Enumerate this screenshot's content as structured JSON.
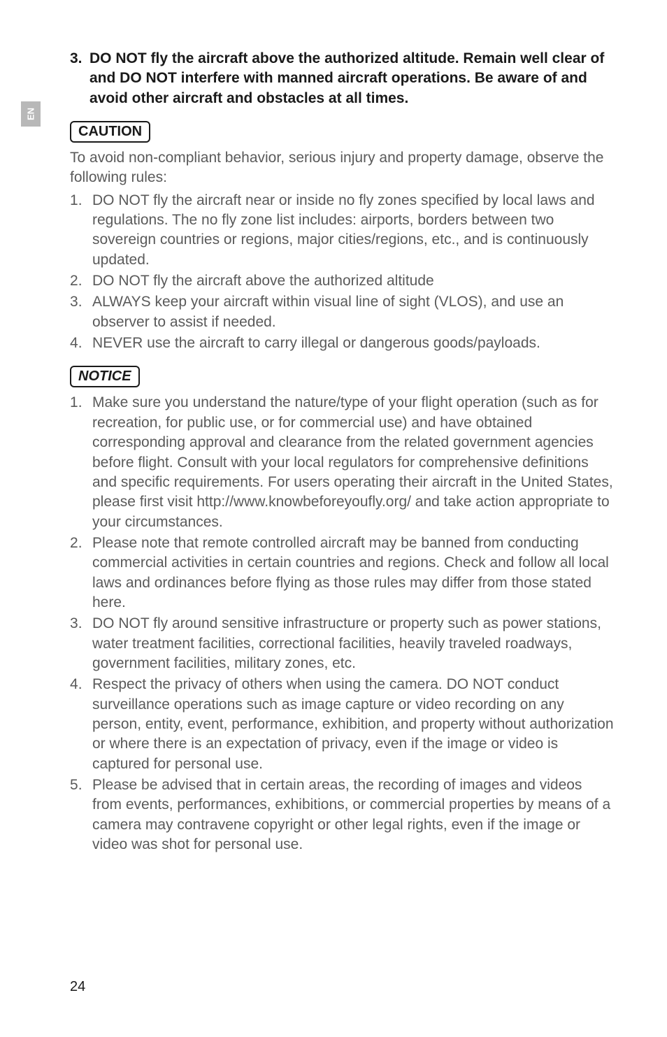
{
  "sideTab": {
    "label": "EN"
  },
  "heading3": {
    "num": "3.",
    "text": "DO NOT fly the aircraft above the authorized altitude. Remain well clear of and DO NOT interfere with manned aircraft operations. Be aware of and avoid other aircraft and obstacles at all times."
  },
  "caution": {
    "badge": "CAUTION",
    "intro": "To avoid non-compliant behavior, serious injury and property damage, observe the following rules:",
    "items": [
      "DO NOT fly the aircraft near or inside no fly zones specified by local laws and regulations. The no fly zone list includes: airports, borders between two sovereign countries or regions, major cities/regions, etc., and is continuously updated.",
      "DO NOT fly the aircraft above the authorized altitude",
      "ALWAYS keep your aircraft within visual line of sight (VLOS), and use an observer to assist if needed.",
      "NEVER use the aircraft to carry illegal or dangerous goods/payloads."
    ]
  },
  "notice": {
    "badge": "NOTICE",
    "items": [
      "Make sure you understand the nature/type of your flight operation (such as for recreation, for public use, or for commercial use) and have obtained corresponding approval and clearance from the related government agencies before flight. Consult with your local regulators for comprehensive definitions and specific requirements. For users operating their aircraft in the United States, please first visit http://www.knowbeforeyoufly.org/ and take action appropriate to your circumstances.",
      "Please note that remote controlled aircraft may be banned from conducting commercial activities in certain countries and regions. Check and follow all local laws and ordinances before flying as those rules may differ from those stated here.",
      "DO NOT fly around sensitive infrastructure or property such as power stations, water treatment facilities, correctional facilities, heavily traveled roadways, government facilities, military zones, etc.",
      "Respect the privacy of others when using the camera. DO NOT conduct surveillance operations such as image capture or video recording on any person, entity, event, performance, exhibition, and property without authorization or where there is an expectation of privacy, even if the image or video is captured for personal use.",
      "Please be advised that in certain areas, the recording of images and videos from events, performances, exhibitions, or commercial properties by means of a camera may contravene copyright or other legal rights, even if the image or video was shot for personal use."
    ]
  },
  "pageNumber": "24",
  "colors": {
    "text": "#5a5a5a",
    "heading": "#1a1a1a",
    "tabBg": "#b8b8b8",
    "tabText": "#ffffff",
    "pageBg": "#ffffff"
  },
  "typography": {
    "bodyFontSize": 21,
    "badgeFontSize": 20,
    "lineHeight": 1.35
  }
}
